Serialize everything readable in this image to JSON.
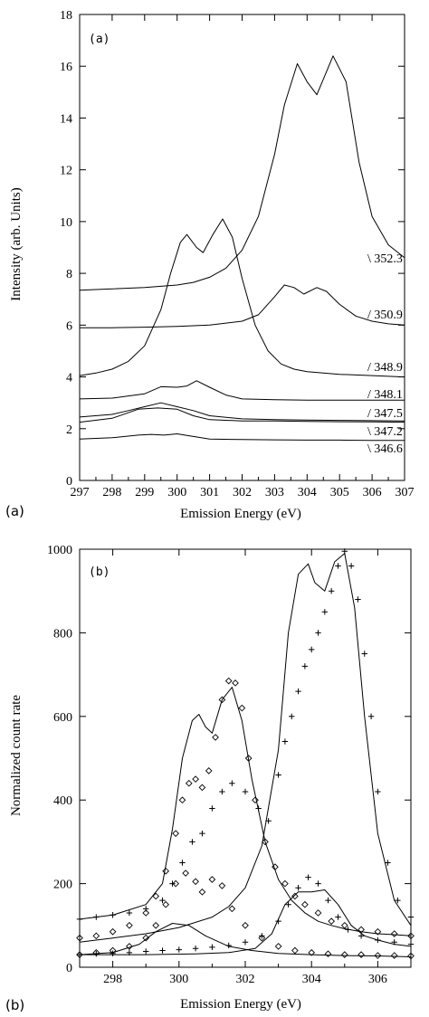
{
  "chart_data": [
    {
      "type": "line",
      "panel_label": "(a)",
      "outer_label": "(a)",
      "xlabel": "Emission Energy (eV)",
      "ylabel": "Intensity (arb. Units)",
      "xlim": [
        297,
        307
      ],
      "ylim": [
        0,
        18
      ],
      "xticks": [
        297,
        298,
        299,
        300,
        301,
        302,
        303,
        304,
        305,
        306,
        307
      ],
      "yticks": [
        0,
        2,
        4,
        6,
        8,
        10,
        12,
        14,
        16,
        18
      ],
      "grid": false,
      "curve_labels": [
        "\\ 352.3",
        "/ 350.9",
        "/ 348.9",
        "/ 348.1",
        "/ 347.5",
        "\\ 347.2",
        "\\ 346.6"
      ],
      "series": [
        {
          "name": "352.3",
          "x": [
            297,
            298,
            299,
            300,
            300.5,
            301,
            301.5,
            302,
            302.5,
            303,
            303.3,
            303.7,
            304,
            304.3,
            304.8,
            305.2,
            305.6,
            306,
            306.5,
            307
          ],
          "values": [
            7.35,
            7.4,
            7.45,
            7.55,
            7.65,
            7.85,
            8.2,
            8.9,
            10.2,
            12.6,
            14.5,
            16.1,
            15.4,
            14.9,
            16.4,
            15.4,
            12.3,
            10.2,
            9.1,
            8.6
          ]
        },
        {
          "name": "350.9",
          "x": [
            297,
            298,
            299,
            300,
            301,
            302,
            302.5,
            303,
            303.3,
            303.6,
            303.9,
            304.3,
            304.6,
            305,
            305.5,
            306,
            306.5,
            307
          ],
          "values": [
            5.9,
            5.9,
            5.92,
            5.95,
            6.0,
            6.15,
            6.4,
            7.1,
            7.55,
            7.45,
            7.2,
            7.45,
            7.3,
            6.8,
            6.35,
            6.15,
            6.05,
            6.0
          ]
        },
        {
          "name": "348.9",
          "x": [
            297,
            297.5,
            298,
            298.5,
            299,
            299.5,
            299.8,
            300.1,
            300.3,
            300.6,
            300.8,
            301.1,
            301.4,
            301.7,
            302,
            302.4,
            302.8,
            303.2,
            303.6,
            304,
            305,
            306,
            307
          ],
          "values": [
            4.05,
            4.15,
            4.3,
            4.6,
            5.2,
            6.6,
            8.0,
            9.2,
            9.5,
            9.0,
            8.8,
            9.5,
            10.1,
            9.4,
            7.8,
            6.0,
            5.0,
            4.5,
            4.3,
            4.2,
            4.1,
            4.05,
            4.0
          ]
        },
        {
          "name": "348.1",
          "x": [
            297,
            298,
            299,
            299.5,
            300,
            300.3,
            300.6,
            301,
            301.5,
            302,
            303,
            304,
            305,
            306,
            307
          ],
          "values": [
            3.15,
            3.18,
            3.35,
            3.62,
            3.6,
            3.65,
            3.85,
            3.6,
            3.3,
            3.15,
            3.12,
            3.1,
            3.1,
            3.1,
            3.1
          ]
        },
        {
          "name": "347.5",
          "x": [
            297,
            298,
            298.5,
            299,
            299.5,
            300,
            300.5,
            301,
            302,
            303,
            304,
            305,
            306,
            307
          ],
          "values": [
            2.45,
            2.55,
            2.7,
            2.85,
            3.0,
            2.85,
            2.7,
            2.5,
            2.38,
            2.35,
            2.33,
            2.32,
            2.31,
            2.3
          ]
        },
        {
          "name": "347.2",
          "x": [
            297,
            298,
            298.8,
            299.4,
            300,
            300.5,
            301,
            302,
            303,
            304,
            305,
            306,
            307
          ],
          "values": [
            2.25,
            2.4,
            2.75,
            2.8,
            2.75,
            2.5,
            2.35,
            2.3,
            2.3,
            2.28,
            2.27,
            2.26,
            2.25
          ]
        },
        {
          "name": "346.6",
          "x": [
            297,
            298,
            298.8,
            299.2,
            299.6,
            300,
            300.5,
            301,
            302,
            303,
            304,
            305,
            306,
            307
          ],
          "values": [
            1.6,
            1.65,
            1.75,
            1.78,
            1.75,
            1.8,
            1.7,
            1.6,
            1.58,
            1.57,
            1.56,
            1.56,
            1.55,
            1.55
          ]
        }
      ]
    },
    {
      "type": "scatter",
      "panel_label": "(b)",
      "outer_label": "(b)",
      "xlabel": "Emission Energy (eV)",
      "ylabel": "Normalized count rate",
      "xlim": [
        297,
        307
      ],
      "ylim": [
        0,
        1000
      ],
      "xticks": [
        298,
        300,
        302,
        304,
        306
      ],
      "yticks": [
        0,
        200,
        400,
        600,
        800,
        1000
      ],
      "grid": false,
      "lines": [
        {
          "x": [
            297,
            298,
            299,
            299.5,
            299.8,
            300.1,
            300.4,
            300.6,
            300.8,
            301,
            301.3,
            301.6,
            301.9,
            302.2,
            302.6,
            303,
            303.4,
            303.8,
            304.2,
            304.6,
            305,
            305.5,
            306,
            306.5,
            307
          ],
          "values": [
            115,
            125,
            150,
            200,
            330,
            500,
            590,
            605,
            575,
            560,
            640,
            670,
            590,
            450,
            300,
            210,
            160,
            130,
            110,
            100,
            92,
            85,
            80,
            78,
            75
          ]
        },
        {
          "x": [
            297,
            298,
            299,
            300,
            301,
            301.5,
            302,
            302.5,
            303,
            303.3,
            303.6,
            303.9,
            304.1,
            304.4,
            304.7,
            305,
            305.3,
            305.6,
            306,
            306.5,
            307
          ],
          "values": [
            60,
            70,
            80,
            95,
            120,
            145,
            190,
            290,
            520,
            800,
            940,
            965,
            920,
            900,
            970,
            990,
            860,
            600,
            320,
            160,
            100
          ]
        },
        {
          "x": [
            297,
            298,
            298.8,
            299.3,
            299.8,
            300.3,
            300.8,
            301.5,
            302.2,
            303,
            304,
            305,
            306,
            307
          ],
          "values": [
            30,
            35,
            55,
            85,
            105,
            100,
            75,
            50,
            40,
            33,
            30,
            28,
            27,
            25
          ]
        },
        {
          "x": [
            297,
            299,
            300.5,
            301.5,
            302.3,
            302.8,
            303.2,
            303.6,
            304,
            304.4,
            304.8,
            305.2,
            305.6,
            306,
            306.5,
            307
          ],
          "values": [
            30,
            30,
            32,
            35,
            45,
            80,
            150,
            180,
            180,
            185,
            150,
            100,
            75,
            65,
            55,
            50
          ]
        }
      ],
      "diamonds_high": {
        "x": [
          297,
          297.5,
          298,
          298.5,
          299,
          299.3,
          299.6,
          299.9,
          300.1,
          300.3,
          300.5,
          300.7,
          300.9,
          301.1,
          301.3,
          301.5,
          301.7,
          301.9,
          302.1,
          302.3,
          302.6,
          302.9,
          303.2,
          303.5,
          303.8,
          304.2,
          304.6,
          305,
          305.5,
          306,
          306.5,
          307
        ],
        "values": [
          70,
          75,
          85,
          100,
          130,
          170,
          230,
          320,
          400,
          440,
          450,
          430,
          470,
          550,
          640,
          685,
          680,
          620,
          500,
          400,
          300,
          240,
          200,
          170,
          150,
          130,
          110,
          100,
          90,
          85,
          80,
          75
        ]
      },
      "diamonds_low": {
        "x": [
          297,
          297.5,
          298,
          298.5,
          299,
          299.3,
          299.6,
          299.9,
          300.2,
          300.5,
          300.7,
          301,
          301.3,
          301.6,
          302,
          302.5,
          303,
          303.5,
          304,
          304.5,
          305,
          305.5,
          306,
          306.5,
          307
        ],
        "values": [
          30,
          35,
          40,
          50,
          70,
          100,
          150,
          200,
          225,
          205,
          180,
          210,
          195,
          140,
          100,
          70,
          50,
          40,
          35,
          32,
          30,
          30,
          28,
          28,
          27
        ]
      },
      "plus_high": {
        "x": [
          297,
          297.5,
          298,
          298.5,
          299,
          299.5,
          299.8,
          300.1,
          300.4,
          300.7,
          301,
          301.3,
          301.6,
          302,
          302.4,
          302.7,
          303,
          303.2,
          303.4,
          303.6,
          303.8,
          304,
          304.2,
          304.4,
          304.6,
          304.8,
          305,
          305.2,
          305.4,
          305.6,
          305.8,
          306,
          306.3,
          306.6,
          307
        ],
        "values": [
          115,
          120,
          125,
          130,
          140,
          160,
          200,
          250,
          300,
          320,
          380,
          420,
          440,
          420,
          380,
          350,
          460,
          540,
          600,
          660,
          720,
          760,
          800,
          850,
          900,
          960,
          995,
          960,
          880,
          750,
          600,
          420,
          250,
          160,
          120
        ]
      },
      "plus_low": {
        "x": [
          297,
          297.5,
          298,
          298.5,
          299,
          299.5,
          300,
          300.5,
          301,
          301.5,
          302,
          302.5,
          303,
          303.3,
          303.6,
          303.9,
          304.2,
          304.5,
          304.8,
          305.1,
          305.5,
          306,
          306.5,
          307
        ],
        "values": [
          30,
          32,
          33,
          35,
          38,
          40,
          42,
          45,
          48,
          52,
          60,
          75,
          110,
          150,
          190,
          215,
          200,
          160,
          120,
          90,
          75,
          65,
          60,
          55
        ]
      }
    }
  ]
}
